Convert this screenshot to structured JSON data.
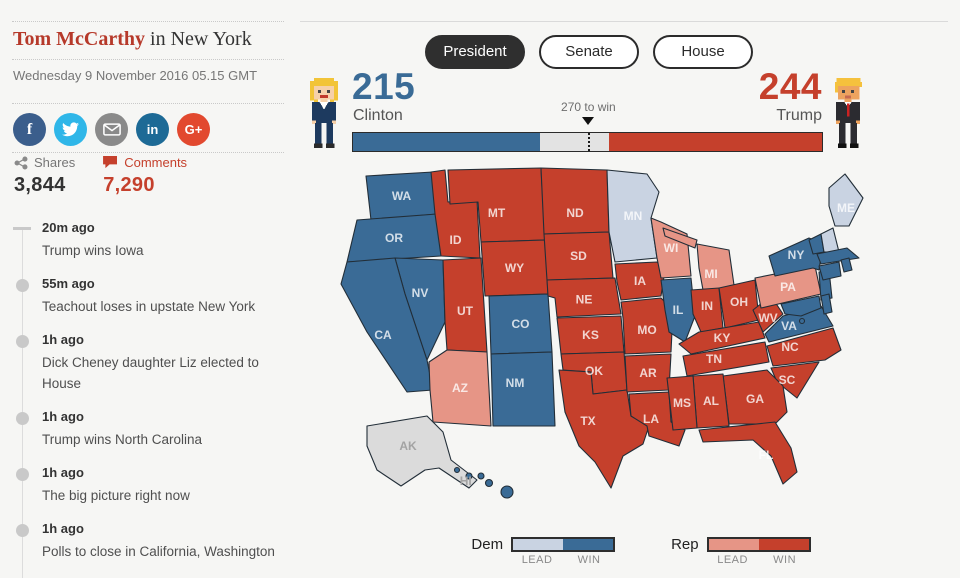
{
  "byline": {
    "author": "Tom McCarthy",
    "connector": " in ",
    "location": "New York"
  },
  "dateline": "Wednesday 9 November 2016 05.15 GMT",
  "social": [
    {
      "name": "facebook",
      "color": "#3b5e8c",
      "glyph": "f"
    },
    {
      "name": "twitter",
      "color": "#2fb6e8",
      "glyph": ""
    },
    {
      "name": "email",
      "color": "#8a8a8a",
      "glyph": ""
    },
    {
      "name": "linkedin",
      "color": "#1d6a96",
      "glyph": "in"
    },
    {
      "name": "google-plus",
      "color": "#e2492f",
      "glyph": "G+"
    }
  ],
  "engagement": {
    "shares_label": "Shares",
    "shares": "3,844",
    "comments_label": "Comments",
    "comments": "7,290"
  },
  "timeline": [
    {
      "time": "20m ago",
      "headline": "Trump wins Iowa"
    },
    {
      "time": "55m ago",
      "headline": "Teachout loses in upstate New York"
    },
    {
      "time": "1h ago",
      "headline": "Dick Cheney daughter Liz elected to House"
    },
    {
      "time": "1h ago",
      "headline": "Trump wins North Carolina"
    },
    {
      "time": "1h ago",
      "headline": "The big picture right now"
    },
    {
      "time": "1h ago",
      "headline": "Polls to close in California, Washington"
    }
  ],
  "tabs": [
    {
      "label": "President",
      "active": true
    },
    {
      "label": "Senate",
      "active": false
    },
    {
      "label": "House",
      "active": false
    }
  ],
  "scoreboard": {
    "total": 538,
    "threshold": 270,
    "threshold_label": "270 to win",
    "clinton": {
      "name": "Clinton",
      "votes": 215,
      "color": "#3a6b96"
    },
    "trump": {
      "name": "Trump",
      "votes": 244,
      "color": "#c5402c"
    }
  },
  "legend": {
    "dem_label": "Dem",
    "rep_label": "Rep",
    "lead_label": "LEAD",
    "win_label": "WIN",
    "colors": {
      "dem_lead": "#c9d3e2",
      "dem_win": "#3a6b96",
      "rep_lead": "#e69586",
      "rep_win": "#c5402c"
    }
  },
  "map": {
    "status_colors": {
      "dem-win": "#3a6b96",
      "dem-lead": "#c9d3e2",
      "rep-win": "#c5402c",
      "rep-lead": "#e69586",
      "none": "#dbdbdb"
    },
    "label_colors": {
      "on_state": "rgba(255,255,255,0.78)",
      "muted": "#a3a3a3"
    },
    "states": [
      {
        "id": "WA",
        "status": "dem-win",
        "show_label": true
      },
      {
        "id": "OR",
        "status": "dem-win",
        "show_label": true
      },
      {
        "id": "CA",
        "status": "dem-win",
        "show_label": true
      },
      {
        "id": "NV",
        "status": "dem-win",
        "show_label": true
      },
      {
        "id": "ID",
        "status": "rep-win",
        "show_label": true
      },
      {
        "id": "MT",
        "status": "rep-win",
        "show_label": true
      },
      {
        "id": "WY",
        "status": "rep-win",
        "show_label": true
      },
      {
        "id": "UT",
        "status": "rep-win",
        "show_label": true
      },
      {
        "id": "CO",
        "status": "dem-win",
        "show_label": true
      },
      {
        "id": "AZ",
        "status": "rep-lead",
        "show_label": true
      },
      {
        "id": "NM",
        "status": "dem-win",
        "show_label": true
      },
      {
        "id": "ND",
        "status": "rep-win",
        "show_label": true
      },
      {
        "id": "SD",
        "status": "rep-win",
        "show_label": true
      },
      {
        "id": "NE",
        "status": "rep-win",
        "show_label": true
      },
      {
        "id": "KS",
        "status": "rep-win",
        "show_label": true
      },
      {
        "id": "OK",
        "status": "rep-win",
        "show_label": true
      },
      {
        "id": "TX",
        "status": "rep-win",
        "show_label": true
      },
      {
        "id": "MN",
        "status": "dem-lead",
        "show_label": true
      },
      {
        "id": "IA",
        "status": "rep-win",
        "show_label": true
      },
      {
        "id": "MO",
        "status": "rep-win",
        "show_label": true
      },
      {
        "id": "AR",
        "status": "rep-win",
        "show_label": true
      },
      {
        "id": "LA",
        "status": "rep-win",
        "show_label": true
      },
      {
        "id": "WI",
        "status": "rep-lead",
        "show_label": true
      },
      {
        "id": "MI",
        "status": "rep-lead",
        "show_label": true
      },
      {
        "id": "IL",
        "status": "dem-win",
        "show_label": true
      },
      {
        "id": "IN",
        "status": "rep-win",
        "show_label": true
      },
      {
        "id": "OH",
        "status": "rep-win",
        "show_label": true
      },
      {
        "id": "KY",
        "status": "rep-win",
        "show_label": true
      },
      {
        "id": "TN",
        "status": "rep-win",
        "show_label": true
      },
      {
        "id": "WV",
        "status": "rep-win",
        "show_label": true
      },
      {
        "id": "VA",
        "status": "dem-win",
        "show_label": true
      },
      {
        "id": "NC",
        "status": "rep-win",
        "show_label": true
      },
      {
        "id": "SC",
        "status": "rep-win",
        "show_label": true
      },
      {
        "id": "GA",
        "status": "rep-win",
        "show_label": true
      },
      {
        "id": "AL",
        "status": "rep-win",
        "show_label": true
      },
      {
        "id": "MS",
        "status": "rep-win",
        "show_label": true
      },
      {
        "id": "FL",
        "status": "rep-win",
        "show_label": true
      },
      {
        "id": "PA",
        "status": "rep-lead",
        "show_label": true
      },
      {
        "id": "NY",
        "status": "dem-win",
        "show_label": true
      },
      {
        "id": "NJ",
        "status": "dem-win",
        "show_label": false
      },
      {
        "id": "DE",
        "status": "dem-win",
        "show_label": false
      },
      {
        "id": "MD",
        "status": "dem-win",
        "show_label": false
      },
      {
        "id": "DC",
        "status": "dem-win",
        "show_label": false
      },
      {
        "id": "VT",
        "status": "dem-win",
        "show_label": false
      },
      {
        "id": "NH",
        "status": "dem-lead",
        "show_label": false
      },
      {
        "id": "ME",
        "status": "dem-lead",
        "show_label": true
      },
      {
        "id": "MA",
        "status": "dem-win",
        "show_label": false
      },
      {
        "id": "CT",
        "status": "dem-win",
        "show_label": false
      },
      {
        "id": "RI",
        "status": "dem-win",
        "show_label": false
      },
      {
        "id": "AK",
        "status": "none",
        "show_label": true,
        "label_muted": true
      },
      {
        "id": "HI",
        "status": "dem-win",
        "show_label": true,
        "label_muted": true
      }
    ]
  }
}
